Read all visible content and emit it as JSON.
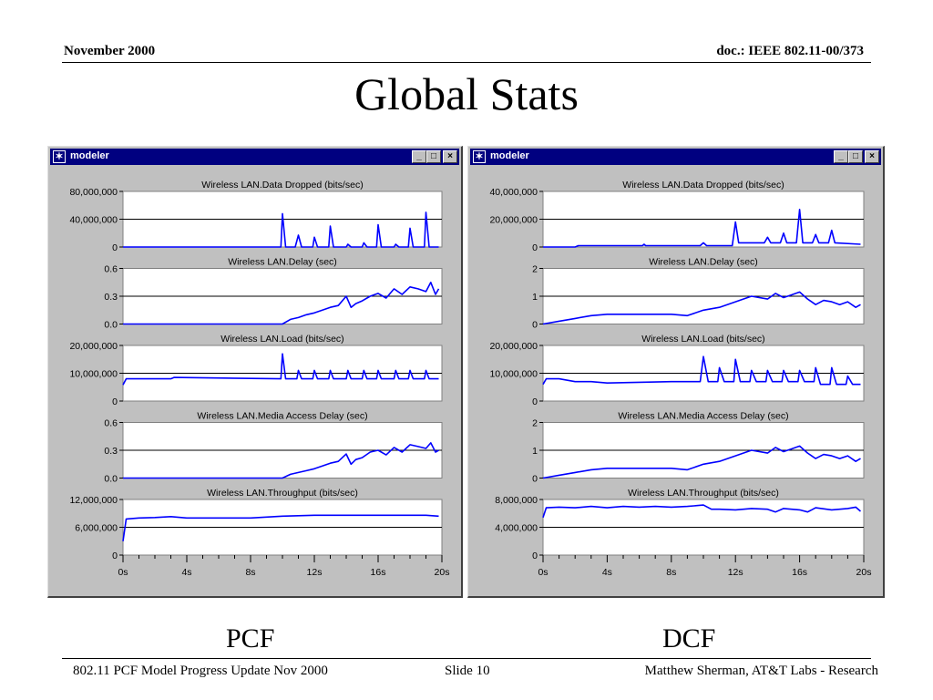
{
  "header": {
    "date": "November 2000",
    "doc": "doc.: IEEE 802.11-00/373"
  },
  "title": "Global Stats",
  "footer": {
    "left": "802.11 PCF Model Progress Update Nov 2000",
    "center": "Slide 10",
    "right": "Matthew Sherman, AT&T Labs - Research"
  },
  "windows": [
    {
      "title": "modeler",
      "caption": "PCF",
      "buttons": [
        "_",
        "□",
        "×"
      ]
    },
    {
      "title": "modeler",
      "caption": "DCF",
      "buttons": [
        "_",
        "□",
        "×"
      ]
    }
  ],
  "colors": {
    "trace": "#0000ff",
    "window_bg": "#c0c0c0",
    "titlebar": "#000080"
  },
  "chart_data": [
    {
      "type": "line",
      "caption": "PCF",
      "x_ticks": [
        "0s",
        "4s",
        "8s",
        "12s",
        "16s",
        "20s"
      ],
      "xlim": [
        0,
        20
      ],
      "panels": [
        {
          "title": "Wireless LAN.Data Dropped (bits/sec)",
          "y_ticks": [
            "80,000,000",
            "40,000,000",
            "0"
          ],
          "ylim": [
            0,
            80000000
          ],
          "x": [
            0,
            9.9,
            10.0,
            10.2,
            10.8,
            11.0,
            11.2,
            11.9,
            12.0,
            12.2,
            12.9,
            13.0,
            13.2,
            14.0,
            14.1,
            14.3,
            15.0,
            15.1,
            15.3,
            15.9,
            16.0,
            16.2,
            17.0,
            17.1,
            17.3,
            17.9,
            18.0,
            18.2,
            18.9,
            19.0,
            19.2,
            19.8
          ],
          "y": [
            0,
            0,
            48000000,
            0,
            0,
            17000000,
            0,
            0,
            14000000,
            0,
            0,
            30000000,
            0,
            0,
            4000000,
            0,
            0,
            6000000,
            0,
            0,
            32000000,
            0,
            0,
            4000000,
            0,
            0,
            27000000,
            0,
            0,
            50000000,
            0,
            0
          ]
        },
        {
          "title": "Wireless LAN.Delay (sec)",
          "y_ticks": [
            "0.6",
            "0.3",
            "0.0"
          ],
          "ylim": [
            0,
            0.6
          ],
          "x": [
            0,
            10,
            10.5,
            11,
            11.5,
            12,
            12.5,
            13,
            13.5,
            14,
            14.3,
            14.6,
            15,
            15.5,
            16,
            16.5,
            17,
            17.5,
            18,
            18.5,
            19,
            19.3,
            19.6,
            19.8
          ],
          "y": [
            0,
            0,
            0.05,
            0.07,
            0.1,
            0.12,
            0.15,
            0.18,
            0.2,
            0.3,
            0.18,
            0.22,
            0.25,
            0.3,
            0.33,
            0.28,
            0.38,
            0.32,
            0.4,
            0.38,
            0.35,
            0.45,
            0.32,
            0.38
          ]
        },
        {
          "title": "Wireless LAN.Load (bits/sec)",
          "y_ticks": [
            "20,000,000",
            "10,000,000",
            "0"
          ],
          "ylim": [
            0,
            20000000
          ],
          "x": [
            0,
            0.2,
            3.0,
            3.2,
            9.9,
            10.0,
            10.2,
            10.9,
            11.0,
            11.2,
            11.9,
            12.0,
            12.2,
            12.9,
            13.0,
            13.2,
            14.0,
            14.1,
            14.3,
            15.0,
            15.1,
            15.3,
            15.9,
            16.0,
            16.2,
            17.0,
            17.1,
            17.3,
            17.9,
            18.0,
            18.2,
            18.9,
            19.0,
            19.2,
            19.8
          ],
          "y": [
            5800000,
            8000000,
            8000000,
            8500000,
            8000000,
            17000000,
            8000000,
            8000000,
            11000000,
            8000000,
            8000000,
            11000000,
            8000000,
            8000000,
            11000000,
            8000000,
            8000000,
            11000000,
            8000000,
            8000000,
            11000000,
            8000000,
            8000000,
            11000000,
            8000000,
            8000000,
            11000000,
            8000000,
            8000000,
            11000000,
            8000000,
            8000000,
            11000000,
            8000000,
            8000000
          ]
        },
        {
          "title": "Wireless LAN.Media Access Delay (sec)",
          "y_ticks": [
            "0.6",
            "0.3",
            "0.0"
          ],
          "ylim": [
            0,
            0.6
          ],
          "x": [
            0,
            10,
            10.5,
            11,
            11.5,
            12,
            12.5,
            13,
            13.5,
            14,
            14.3,
            14.6,
            15,
            15.5,
            16,
            16.5,
            17,
            17.5,
            18,
            18.5,
            19,
            19.3,
            19.6,
            19.8
          ],
          "y": [
            0,
            0,
            0.04,
            0.06,
            0.08,
            0.1,
            0.13,
            0.16,
            0.18,
            0.26,
            0.15,
            0.2,
            0.22,
            0.28,
            0.3,
            0.25,
            0.33,
            0.28,
            0.36,
            0.34,
            0.32,
            0.38,
            0.28,
            0.3
          ]
        },
        {
          "title": "Wireless LAN.Throughput (bits/sec)",
          "y_ticks": [
            "12,000,000",
            "6,000,000",
            "0"
          ],
          "ylim": [
            0,
            12000000
          ],
          "x": [
            0,
            0.2,
            1,
            2,
            3,
            4,
            8,
            10,
            12,
            16,
            19,
            19.8
          ],
          "y": [
            3000000,
            7800000,
            8000000,
            8100000,
            8300000,
            8000000,
            8000000,
            8400000,
            8600000,
            8600000,
            8600000,
            8400000
          ]
        }
      ]
    },
    {
      "type": "line",
      "caption": "DCF",
      "x_ticks": [
        "0s",
        "4s",
        "8s",
        "12s",
        "16s",
        "20s"
      ],
      "xlim": [
        0,
        20
      ],
      "panels": [
        {
          "title": "Wireless LAN.Data Dropped (bits/sec)",
          "y_ticks": [
            "40,000,000",
            "20,000,000",
            "0"
          ],
          "ylim": [
            0,
            40000000
          ],
          "x": [
            0,
            2.0,
            2.2,
            6.2,
            6.3,
            6.4,
            9.8,
            10.0,
            10.2,
            11.8,
            12.0,
            12.2,
            13.8,
            14.0,
            14.2,
            14.8,
            15.0,
            15.2,
            15.8,
            16.0,
            16.2,
            16.8,
            17.0,
            17.2,
            17.8,
            18.0,
            18.2,
            19.8
          ],
          "y": [
            0,
            0,
            1000000,
            1000000,
            2000000,
            1000000,
            1000000,
            3000000,
            1000000,
            1000000,
            18000000,
            3000000,
            3000000,
            7000000,
            3000000,
            3000000,
            10000000,
            3000000,
            3000000,
            27000000,
            3000000,
            3000000,
            9000000,
            3000000,
            3000000,
            12000000,
            3000000,
            2000000
          ]
        },
        {
          "title": "Wireless LAN.Delay (sec)",
          "y_ticks": [
            "2",
            "1",
            "0"
          ],
          "ylim": [
            0,
            2
          ],
          "x": [
            0,
            1,
            2,
            3,
            4,
            6,
            8,
            9,
            10,
            11,
            12,
            13,
            14,
            14.5,
            15,
            15.5,
            16,
            16.5,
            17,
            17.5,
            18,
            18.5,
            19,
            19.5,
            19.8
          ],
          "y": [
            0,
            0.1,
            0.2,
            0.3,
            0.35,
            0.35,
            0.35,
            0.3,
            0.5,
            0.6,
            0.8,
            1.0,
            0.9,
            1.1,
            0.95,
            1.05,
            1.15,
            0.9,
            0.7,
            0.85,
            0.8,
            0.7,
            0.8,
            0.6,
            0.7
          ]
        },
        {
          "title": "Wireless LAN.Load (bits/sec)",
          "y_ticks": [
            "20,000,000",
            "10,000,000",
            "0"
          ],
          "ylim": [
            0,
            20000000
          ],
          "x": [
            0,
            0.2,
            1,
            2,
            3,
            4,
            8,
            9.8,
            10.0,
            10.3,
            10.9,
            11.0,
            11.3,
            11.9,
            12.0,
            12.3,
            12.9,
            13.0,
            13.3,
            13.9,
            14.0,
            14.3,
            14.9,
            15.0,
            15.3,
            15.9,
            16.0,
            16.3,
            16.9,
            17.0,
            17.3,
            17.9,
            18.0,
            18.3,
            18.9,
            19.0,
            19.3,
            19.8
          ],
          "y": [
            6000000,
            8000000,
            8000000,
            7000000,
            7000000,
            6500000,
            7000000,
            7000000,
            16000000,
            7000000,
            7000000,
            12000000,
            7000000,
            7000000,
            15000000,
            7000000,
            7000000,
            11000000,
            7000000,
            7000000,
            11000000,
            7000000,
            7000000,
            11000000,
            7000000,
            7000000,
            11000000,
            7000000,
            7000000,
            12000000,
            6000000,
            6000000,
            12000000,
            6000000,
            6000000,
            9000000,
            6000000,
            6000000
          ]
        },
        {
          "title": "Wireless LAN.Media Access Delay (sec)",
          "y_ticks": [
            "2",
            "1",
            "0"
          ],
          "ylim": [
            0,
            2
          ],
          "x": [
            0,
            1,
            2,
            3,
            4,
            6,
            8,
            9,
            10,
            11,
            12,
            13,
            14,
            14.5,
            15,
            15.5,
            16,
            16.5,
            17,
            17.5,
            18,
            18.5,
            19,
            19.5,
            19.8
          ],
          "y": [
            0,
            0.1,
            0.2,
            0.3,
            0.35,
            0.35,
            0.35,
            0.3,
            0.5,
            0.6,
            0.8,
            1.0,
            0.9,
            1.1,
            0.95,
            1.05,
            1.15,
            0.9,
            0.7,
            0.85,
            0.8,
            0.7,
            0.8,
            0.6,
            0.7
          ]
        },
        {
          "title": "Wireless LAN.Throughput (bits/sec)",
          "y_ticks": [
            "8,000,000",
            "4,000,000",
            "0"
          ],
          "ylim": [
            0,
            8000000
          ],
          "x": [
            0,
            0.2,
            1,
            2,
            3,
            4,
            5,
            6,
            7,
            8,
            9,
            10,
            10.5,
            11,
            12,
            13,
            14,
            14.5,
            15,
            16,
            16.5,
            17,
            18,
            19,
            19.5,
            19.8
          ],
          "y": [
            5400000,
            6800000,
            6900000,
            6800000,
            7000000,
            6800000,
            7000000,
            6900000,
            7000000,
            6900000,
            7000000,
            7200000,
            6600000,
            6600000,
            6500000,
            6700000,
            6600000,
            6200000,
            6700000,
            6500000,
            6200000,
            6800000,
            6500000,
            6700000,
            6900000,
            6300000
          ]
        }
      ]
    }
  ]
}
